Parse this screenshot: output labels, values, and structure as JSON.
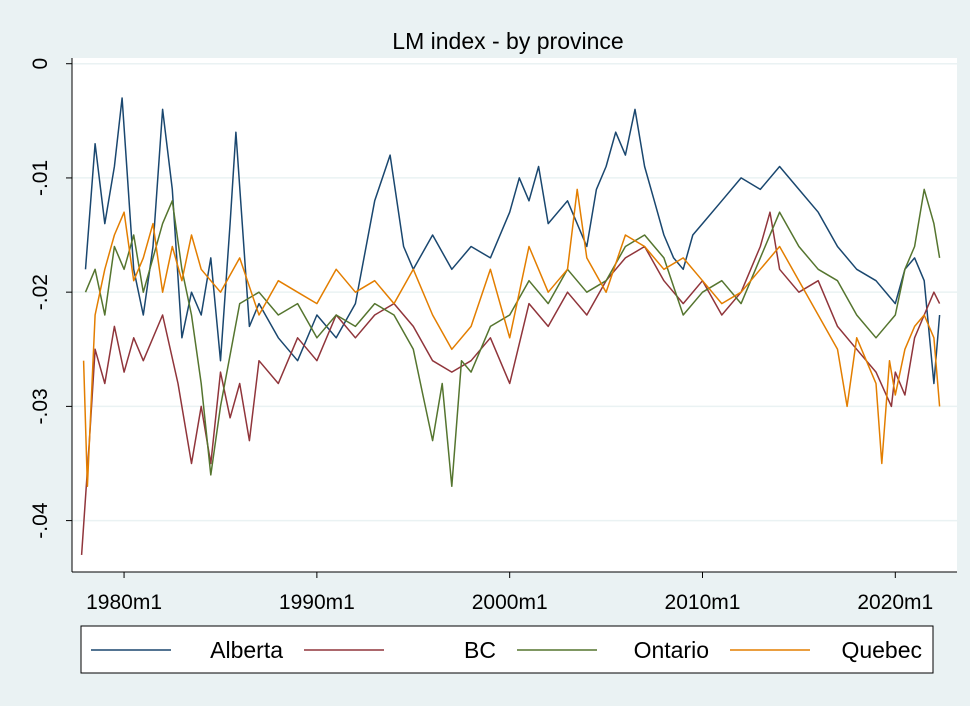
{
  "chart_data": {
    "type": "line",
    "title": "LM index - by province",
    "xlabel": "",
    "ylabel": "",
    "x_start": "1977m1",
    "x_end": "2022m6",
    "x_ticks": [
      {
        "value": 1980.0,
        "label": "1980m1"
      },
      {
        "value": 1990.0,
        "label": "1990m1"
      },
      {
        "value": 2000.0,
        "label": "2000m1"
      },
      {
        "value": 2010.0,
        "label": "2010m1"
      },
      {
        "value": 2020.0,
        "label": "2020m1"
      }
    ],
    "y_ticks": [
      {
        "value": 0,
        "label": "0"
      },
      {
        "value": -0.01,
        "label": "-.01"
      },
      {
        "value": -0.02,
        "label": "-.02"
      },
      {
        "value": -0.03,
        "label": "-.03"
      },
      {
        "value": -0.04,
        "label": "-.04"
      }
    ],
    "xlim": [
      1977.3,
      2023.2
    ],
    "ylim": [
      -0.0445,
      0.0005
    ],
    "grid": true,
    "legend_position": "bottom",
    "colors": {
      "Alberta": "#1a476f",
      "BC": "#90353b",
      "Ontario": "#55752f",
      "Quebec": "#e37e00",
      "background": "#eaf2f3",
      "plot_background": "#ffffff",
      "grid": "#eaf2f3"
    },
    "series": [
      {
        "name": "Alberta",
        "x": [
          1978.0,
          1978.5,
          1979.0,
          1979.5,
          1979.9,
          1980.5,
          1981.0,
          1981.5,
          1982.0,
          1982.5,
          1983.0,
          1983.5,
          1984.0,
          1984.5,
          1985.0,
          1985.5,
          1985.8,
          1986.5,
          1987.0,
          1988.0,
          1989.0,
          1990.0,
          1991.0,
          1992.0,
          1993.0,
          1993.8,
          1994.5,
          1995.0,
          1996.0,
          1997.0,
          1998.0,
          1999.0,
          2000.0,
          2000.5,
          2001.0,
          2001.5,
          2002.0,
          2003.0,
          2004.0,
          2004.5,
          2005.0,
          2005.5,
          2006.0,
          2006.5,
          2007.0,
          2007.5,
          2008.0,
          2008.5,
          2009.0,
          2009.5,
          2010.0,
          2011.0,
          2012.0,
          2013.0,
          2014.0,
          2015.0,
          2016.0,
          2017.0,
          2018.0,
          2019.0,
          2020.0,
          2020.5,
          2021.0,
          2021.5,
          2022.0,
          2022.3
        ],
        "y": [
          -0.018,
          -0.007,
          -0.014,
          -0.009,
          -0.003,
          -0.018,
          -0.022,
          -0.016,
          -0.004,
          -0.011,
          -0.024,
          -0.02,
          -0.022,
          -0.017,
          -0.026,
          -0.014,
          -0.006,
          -0.023,
          -0.021,
          -0.024,
          -0.026,
          -0.022,
          -0.024,
          -0.021,
          -0.012,
          -0.008,
          -0.016,
          -0.018,
          -0.015,
          -0.018,
          -0.016,
          -0.017,
          -0.013,
          -0.01,
          -0.012,
          -0.009,
          -0.014,
          -0.012,
          -0.016,
          -0.011,
          -0.009,
          -0.006,
          -0.008,
          -0.004,
          -0.009,
          -0.012,
          -0.015,
          -0.017,
          -0.018,
          -0.015,
          -0.014,
          -0.012,
          -0.01,
          -0.011,
          -0.009,
          -0.011,
          -0.013,
          -0.016,
          -0.018,
          -0.019,
          -0.021,
          -0.018,
          -0.017,
          -0.019,
          -0.028,
          -0.022
        ]
      },
      {
        "name": "BC",
        "x": [
          1977.8,
          1978.2,
          1978.5,
          1979.0,
          1979.5,
          1980.0,
          1980.5,
          1981.0,
          1982.0,
          1982.8,
          1983.5,
          1984.0,
          1984.5,
          1985.0,
          1985.5,
          1986.0,
          1986.5,
          1987.0,
          1988.0,
          1989.0,
          1990.0,
          1991.0,
          1992.0,
          1993.0,
          1994.0,
          1995.0,
          1996.0,
          1997.0,
          1998.0,
          1999.0,
          2000.0,
          2001.0,
          2002.0,
          2003.0,
          2004.0,
          2005.0,
          2006.0,
          2007.0,
          2008.0,
          2009.0,
          2010.0,
          2011.0,
          2012.0,
          2013.0,
          2013.5,
          2014.0,
          2015.0,
          2016.0,
          2017.0,
          2018.0,
          2019.0,
          2019.8,
          2020.0,
          2020.5,
          2021.0,
          2021.5,
          2022.0,
          2022.3
        ],
        "y": [
          -0.043,
          -0.033,
          -0.025,
          -0.028,
          -0.023,
          -0.027,
          -0.024,
          -0.026,
          -0.022,
          -0.028,
          -0.035,
          -0.03,
          -0.035,
          -0.027,
          -0.031,
          -0.028,
          -0.033,
          -0.026,
          -0.028,
          -0.024,
          -0.026,
          -0.022,
          -0.024,
          -0.022,
          -0.021,
          -0.023,
          -0.026,
          -0.027,
          -0.026,
          -0.024,
          -0.028,
          -0.021,
          -0.023,
          -0.02,
          -0.022,
          -0.019,
          -0.017,
          -0.016,
          -0.019,
          -0.021,
          -0.019,
          -0.022,
          -0.02,
          -0.016,
          -0.013,
          -0.018,
          -0.02,
          -0.019,
          -0.023,
          -0.025,
          -0.027,
          -0.03,
          -0.027,
          -0.029,
          -0.024,
          -0.022,
          -0.02,
          -0.021
        ]
      },
      {
        "name": "Ontario",
        "x": [
          1978.0,
          1978.5,
          1979.0,
          1979.5,
          1980.0,
          1980.5,
          1981.0,
          1981.5,
          1982.0,
          1982.5,
          1983.0,
          1983.5,
          1984.0,
          1984.5,
          1985.0,
          1986.0,
          1987.0,
          1988.0,
          1989.0,
          1990.0,
          1991.0,
          1992.0,
          1993.0,
          1994.0,
          1995.0,
          1995.5,
          1996.0,
          1996.5,
          1997.0,
          1997.5,
          1998.0,
          1999.0,
          2000.0,
          2001.0,
          2002.0,
          2003.0,
          2004.0,
          2005.0,
          2006.0,
          2007.0,
          2008.0,
          2009.0,
          2010.0,
          2011.0,
          2012.0,
          2013.0,
          2014.0,
          2015.0,
          2016.0,
          2017.0,
          2018.0,
          2019.0,
          2020.0,
          2020.5,
          2021.0,
          2021.5,
          2022.0,
          2022.3
        ],
        "y": [
          -0.02,
          -0.018,
          -0.022,
          -0.016,
          -0.018,
          -0.015,
          -0.02,
          -0.017,
          -0.014,
          -0.012,
          -0.018,
          -0.022,
          -0.028,
          -0.036,
          -0.03,
          -0.021,
          -0.02,
          -0.022,
          -0.021,
          -0.024,
          -0.022,
          -0.023,
          -0.021,
          -0.022,
          -0.025,
          -0.029,
          -0.033,
          -0.028,
          -0.037,
          -0.026,
          -0.027,
          -0.023,
          -0.022,
          -0.019,
          -0.021,
          -0.018,
          -0.02,
          -0.019,
          -0.016,
          -0.015,
          -0.017,
          -0.022,
          -0.02,
          -0.019,
          -0.021,
          -0.017,
          -0.013,
          -0.016,
          -0.018,
          -0.019,
          -0.022,
          -0.024,
          -0.022,
          -0.018,
          -0.016,
          -0.011,
          -0.014,
          -0.017
        ]
      },
      {
        "name": "Quebec",
        "x": [
          1977.9,
          1978.1,
          1978.5,
          1979.0,
          1979.5,
          1980.0,
          1980.5,
          1981.0,
          1981.5,
          1982.0,
          1982.5,
          1983.0,
          1983.5,
          1984.0,
          1985.0,
          1986.0,
          1987.0,
          1988.0,
          1989.0,
          1990.0,
          1991.0,
          1992.0,
          1993.0,
          1994.0,
          1995.0,
          1996.0,
          1997.0,
          1998.0,
          1999.0,
          2000.0,
          2001.0,
          2002.0,
          2003.0,
          2003.5,
          2004.0,
          2005.0,
          2006.0,
          2007.0,
          2008.0,
          2009.0,
          2010.0,
          2011.0,
          2012.0,
          2013.0,
          2014.0,
          2015.0,
          2016.0,
          2017.0,
          2017.5,
          2018.0,
          2019.0,
          2019.3,
          2019.7,
          2020.0,
          2020.5,
          2021.0,
          2021.5,
          2022.0,
          2022.3
        ],
        "y": [
          -0.026,
          -0.037,
          -0.022,
          -0.018,
          -0.015,
          -0.013,
          -0.019,
          -0.017,
          -0.014,
          -0.02,
          -0.016,
          -0.019,
          -0.015,
          -0.018,
          -0.02,
          -0.017,
          -0.022,
          -0.019,
          -0.02,
          -0.021,
          -0.018,
          -0.02,
          -0.019,
          -0.021,
          -0.018,
          -0.022,
          -0.025,
          -0.023,
          -0.018,
          -0.024,
          -0.016,
          -0.02,
          -0.018,
          -0.011,
          -0.017,
          -0.02,
          -0.015,
          -0.016,
          -0.018,
          -0.017,
          -0.019,
          -0.021,
          -0.02,
          -0.018,
          -0.016,
          -0.019,
          -0.022,
          -0.025,
          -0.03,
          -0.024,
          -0.028,
          -0.035,
          -0.026,
          -0.029,
          -0.025,
          -0.023,
          -0.022,
          -0.024,
          -0.03
        ]
      }
    ]
  }
}
